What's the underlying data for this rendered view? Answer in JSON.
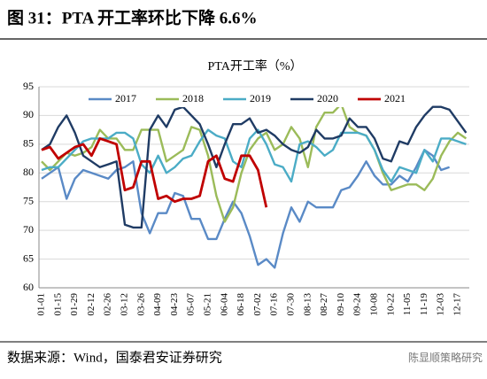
{
  "header": {
    "title": "图 31：PTA 开工率环比下降 6.6%"
  },
  "footer": {
    "source": "数据来源：Wind，国泰君安证券研究",
    "watermark": "陈显顺策略研究"
  },
  "chart_data": {
    "type": "line",
    "title": "PTA开工率（%）",
    "categories": [
      "01-01",
      null,
      "01-15",
      null,
      "01-29",
      null,
      "02-12",
      null,
      "02-26",
      null,
      "03-12",
      null,
      "03-26",
      null,
      "04-09",
      null,
      "04-23",
      null,
      "05-07",
      null,
      "05-21",
      null,
      "06-04",
      null,
      "06-18",
      null,
      "07-02",
      null,
      "07-16",
      null,
      "07-30",
      null,
      "08-13",
      null,
      "08-27",
      null,
      "09-10",
      null,
      "09-24",
      null,
      "10-08",
      null,
      "10-22",
      null,
      "11-05",
      null,
      "11-19",
      null,
      "12-03",
      null,
      "12-17",
      null
    ],
    "ylim": [
      60,
      95
    ],
    "yticks": [
      60,
      65,
      70,
      75,
      80,
      85,
      90,
      95
    ],
    "grid": true,
    "legend": "top",
    "series": [
      {
        "name": "2017",
        "color": "#5a8ac6",
        "values": [
          79,
          80,
          81,
          75.5,
          79,
          80.5,
          80,
          79.5,
          79,
          80.5,
          81,
          82,
          73,
          69.5,
          73,
          73,
          76.5,
          76,
          72,
          72,
          68.5,
          68.5,
          72,
          75,
          73,
          69,
          64,
          65,
          63.5,
          69.5,
          74,
          71.5,
          75,
          74,
          74,
          74,
          77,
          77.5,
          79.5,
          82,
          79.5,
          78,
          78,
          79.5,
          78.5,
          81,
          84,
          83,
          80.5,
          81,
          null,
          null
        ]
      },
      {
        "name": "2018",
        "color": "#9bbb59",
        "values": [
          82,
          80.5,
          82,
          83.5,
          83,
          83.5,
          84.5,
          87.5,
          86,
          86,
          84,
          84,
          87.5,
          87.5,
          87.5,
          82,
          83,
          84,
          88,
          87.5,
          83,
          76,
          71.5,
          74,
          80,
          84,
          86,
          87,
          84,
          85,
          88,
          86,
          81,
          88,
          90.5,
          90.5,
          92,
          88,
          87,
          86.5,
          84,
          80,
          77,
          77.5,
          78,
          78,
          77,
          79,
          83,
          85.5,
          87,
          86
        ]
      },
      {
        "name": "2019",
        "color": "#4bacc6",
        "values": [
          80.5,
          81,
          81,
          82.5,
          84,
          85.5,
          86,
          86,
          86,
          87,
          87,
          86,
          81.5,
          80,
          83,
          80,
          81,
          82.5,
          83,
          85.5,
          87.5,
          86.5,
          86,
          82,
          81,
          86,
          87.5,
          85,
          81.5,
          81,
          78.5,
          85,
          85.5,
          84.5,
          83,
          84,
          87,
          87,
          87,
          86.5,
          84,
          80.5,
          78.5,
          81,
          80.5,
          80,
          84,
          82,
          86,
          86,
          85.5,
          85
        ]
      },
      {
        "name": "2020",
        "color": "#1f3b64",
        "values": [
          84,
          85,
          88,
          90,
          87,
          83,
          82,
          81,
          81.5,
          82,
          71,
          70.5,
          70.5,
          87.5,
          90,
          88,
          91,
          91.5,
          90,
          88.5,
          85,
          81,
          85,
          88.5,
          88.5,
          89.5,
          87,
          87.5,
          86.5,
          85,
          84,
          83.5,
          84.5,
          87.5,
          86,
          86,
          86.5,
          89.5,
          88,
          88,
          86,
          82.5,
          82,
          85.5,
          85,
          88,
          90,
          91.5,
          91.5,
          91,
          89,
          87
        ]
      },
      {
        "name": "2021",
        "color": "#c00000",
        "values": [
          84,
          84.5,
          82.5,
          83.5,
          84.5,
          85,
          83,
          86,
          85.5,
          85,
          77,
          77.5,
          82,
          82,
          75.5,
          76,
          75,
          75.5,
          75.5,
          76,
          82,
          83,
          79,
          78.5,
          83,
          83,
          80.5,
          74,
          null,
          null,
          null,
          null,
          null,
          null,
          null,
          null,
          null,
          null,
          null,
          null,
          null,
          null,
          null,
          null,
          null,
          null,
          null,
          null,
          null,
          null,
          null,
          null
        ]
      }
    ]
  }
}
